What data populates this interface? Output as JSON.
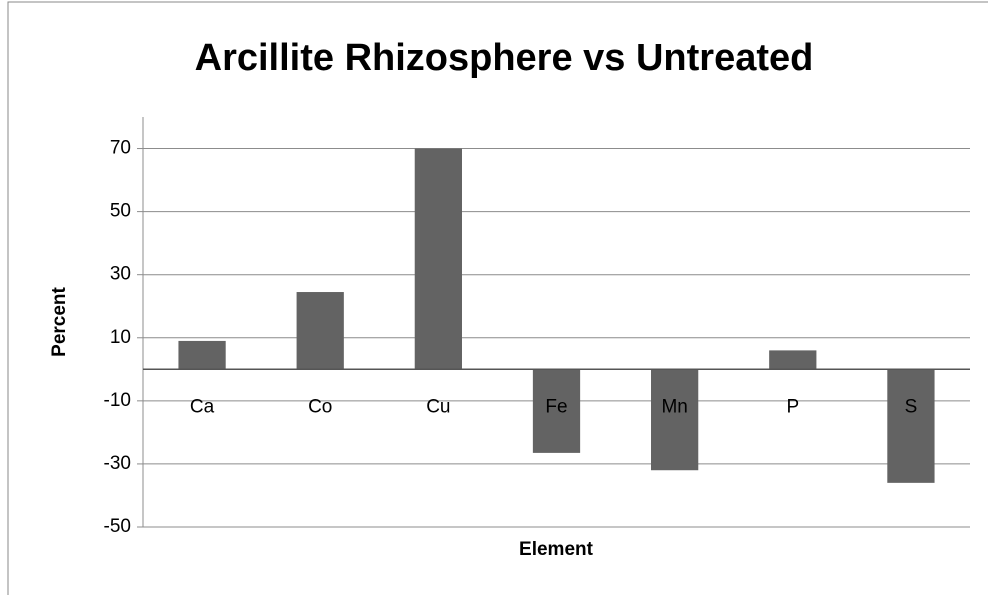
{
  "chart_data": {
    "type": "bar",
    "title": "Arcillite Rhizosphere vs Untreated",
    "x_label": "Element",
    "y_label": "Percent",
    "categories": [
      "Ca",
      "Co",
      "Cu",
      "Fe",
      "Mn",
      "P",
      "S"
    ],
    "values": [
      9,
      24.5,
      70,
      -26.5,
      -32,
      6,
      -36
    ],
    "color": "#636363",
    "ylim": [
      -50,
      80
    ],
    "yticks": [
      -50,
      -30,
      -10,
      10,
      30,
      50,
      70
    ],
    "grid": true
  }
}
